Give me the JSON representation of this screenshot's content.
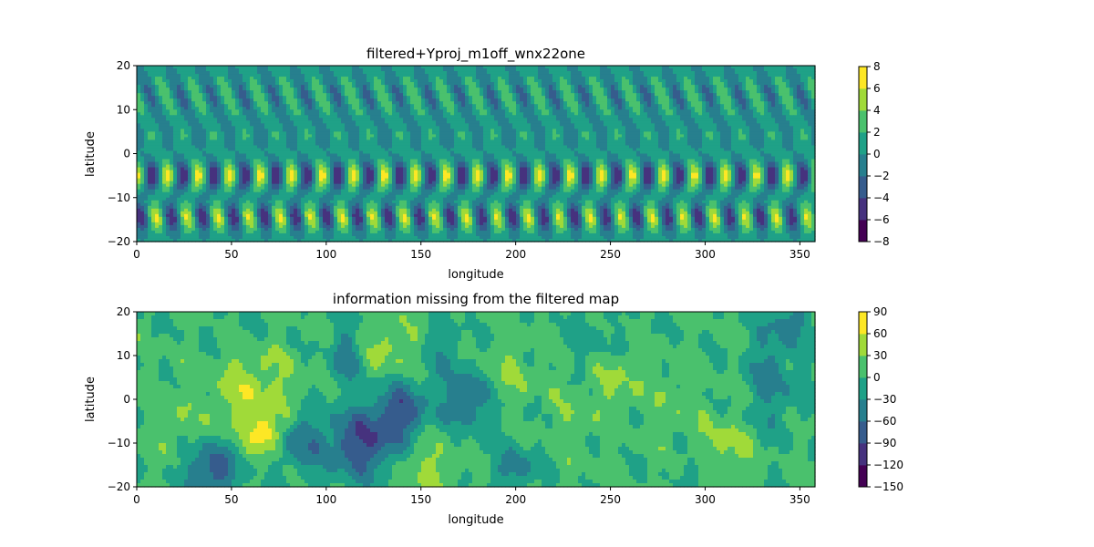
{
  "chart_data": [
    {
      "type": "heatmap",
      "title": "filtered+Yproj_m1off_wnx22one",
      "xlabel": "longitude",
      "ylabel": "latitude",
      "xlim": [
        0,
        358
      ],
      "ylim": [
        -20,
        20
      ],
      "x_ticks": [
        0,
        50,
        100,
        150,
        200,
        250,
        300,
        350
      ],
      "y_ticks": [
        -20,
        -10,
        0,
        10,
        20
      ],
      "colorbar": {
        "levels": [
          -8,
          -6,
          -4,
          -2,
          0,
          2,
          4,
          6,
          8
        ],
        "tick_labels": [
          "−8",
          "−6",
          "−4",
          "−2",
          "0",
          "2",
          "4",
          "6",
          "8"
        ]
      },
      "colormap": [
        "#440154",
        "#46327e",
        "#365c8d",
        "#277f8e",
        "#1fa187",
        "#4ac16d",
        "#a0da39",
        "#fde725"
      ],
      "pattern": {
        "zonal_wavenumber": 22,
        "value_range": [
          -8,
          8
        ],
        "features": "periodic wave pattern with strongest extremes near -5 and -15 latitude"
      }
    },
    {
      "type": "heatmap",
      "title": "information missing from the filtered map",
      "xlabel": "longitude",
      "ylabel": "latitude",
      "xlim": [
        0,
        358
      ],
      "ylim": [
        -20,
        20
      ],
      "x_ticks": [
        0,
        50,
        100,
        150,
        200,
        250,
        300,
        350
      ],
      "y_ticks": [
        -20,
        -10,
        0,
        10,
        20
      ],
      "colorbar": {
        "levels": [
          -150,
          -120,
          -90,
          -60,
          -30,
          0,
          30,
          60,
          90
        ],
        "tick_labels": [
          "−150",
          "−120",
          "−90",
          "−60",
          "−30",
          "0",
          "30",
          "60",
          "90"
        ]
      },
      "colormap": [
        "#440154",
        "#46327e",
        "#365c8d",
        "#277f8e",
        "#1fa187",
        "#4ac16d",
        "#a0da39",
        "#fde725"
      ],
      "pattern": {
        "value_range": [
          -150,
          90
        ],
        "features": "irregular field mostly between -30 and 30; negative cluster near longitude 110-190, positive patches near 60, 150, 250 and 310"
      }
    }
  ]
}
